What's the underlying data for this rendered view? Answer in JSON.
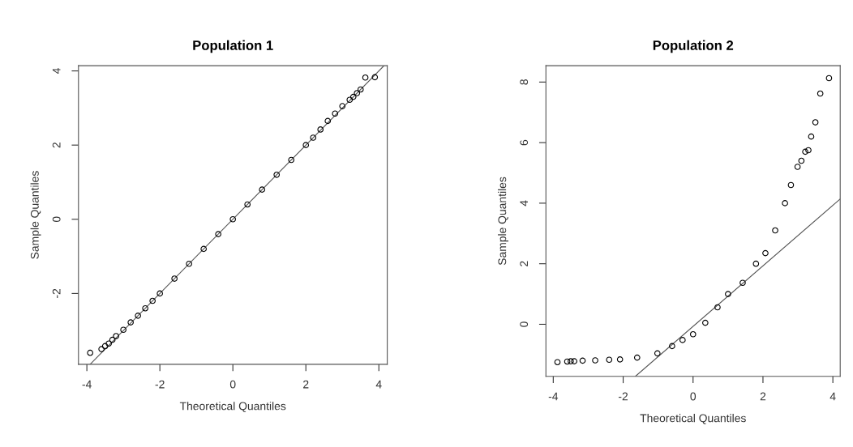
{
  "chart_data": [
    {
      "type": "scatter",
      "title": "Population 1",
      "xlabel": "Theoretical Quantiles",
      "ylabel": "Sample Quantiles",
      "xlim": [
        -4.23,
        4.23
      ],
      "ylim": [
        -3.91,
        4.14
      ],
      "xticks": [
        -4,
        -2,
        0,
        2,
        4
      ],
      "yticks": [
        -2,
        0,
        2,
        4
      ],
      "series": [
        {
          "marker": "circle",
          "color": "#000000",
          "x": [
            -3.91,
            -3.6,
            -3.5,
            -3.4,
            -3.3,
            -3.2,
            -3.0,
            -2.8,
            -2.6,
            -2.4,
            -2.2,
            -2.0,
            -1.6,
            -1.2,
            -0.8,
            -0.4,
            0,
            0.4,
            0.8,
            1.2,
            1.6,
            2.0,
            2.2,
            2.4,
            2.6,
            2.8,
            3.0,
            3.2,
            3.3,
            3.4,
            3.5,
            3.63,
            3.89
          ],
          "values": [
            -3.6,
            -3.5,
            -3.42,
            -3.35,
            -3.25,
            -3.15,
            -2.98,
            -2.78,
            -2.6,
            -2.4,
            -2.2,
            -2.0,
            -1.6,
            -1.2,
            -0.8,
            -0.4,
            0,
            0.4,
            0.8,
            1.2,
            1.6,
            2.0,
            2.2,
            2.42,
            2.65,
            2.85,
            3.05,
            3.22,
            3.3,
            3.4,
            3.5,
            3.82,
            3.83
          ]
        },
        {
          "type": "line",
          "marker": "none",
          "color": "#555555",
          "x": [
            -3.91,
            4.14
          ],
          "values": [
            -3.91,
            4.14
          ]
        }
      ]
    },
    {
      "type": "scatter",
      "title": "Population 2",
      "xlabel": "Theoretical Quantiles",
      "ylabel": "Sample Quantiles",
      "xlim": [
        -4.21,
        4.21
      ],
      "ylim": [
        -1.72,
        8.54
      ],
      "xticks": [
        -4,
        -2,
        0,
        2,
        4
      ],
      "yticks": [
        0,
        2,
        4,
        6,
        8
      ],
      "series": [
        {
          "marker": "circle",
          "color": "#000000",
          "x": [
            -3.88,
            -3.6,
            -3.5,
            -3.4,
            -3.16,
            -2.8,
            -2.4,
            -2.09,
            -1.6,
            -1.02,
            -0.6,
            -0.3,
            0,
            0.35,
            0.7,
            1.0,
            1.42,
            1.8,
            2.07,
            2.35,
            2.63,
            2.8,
            2.99,
            3.1,
            3.21,
            3.3,
            3.38,
            3.5,
            3.64,
            3.89
          ],
          "values": [
            -1.25,
            -1.23,
            -1.22,
            -1.22,
            -1.2,
            -1.19,
            -1.17,
            -1.16,
            -1.1,
            -0.96,
            -0.72,
            -0.52,
            -0.33,
            0.05,
            0.56,
            1.0,
            1.37,
            2.0,
            2.35,
            3.1,
            4.0,
            4.6,
            5.2,
            5.4,
            5.7,
            5.75,
            6.2,
            6.67,
            7.62,
            8.13
          ]
        },
        {
          "type": "line",
          "marker": "none",
          "color": "#555555",
          "x": [
            -1.65,
            4.21
          ],
          "values": [
            -1.72,
            4.14
          ]
        }
      ]
    }
  ]
}
